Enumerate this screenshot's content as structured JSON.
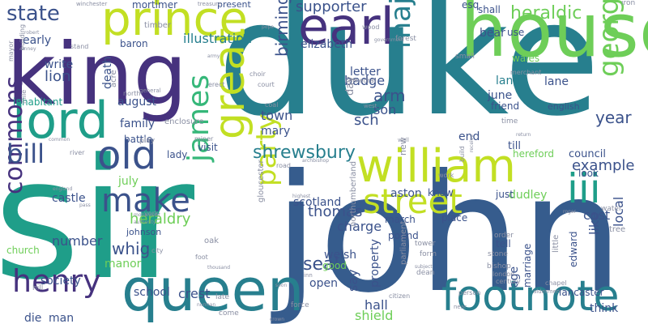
{
  "palette": {
    "purple": "#46327e",
    "indigo": "#3b528b",
    "blue": "#365c8d",
    "teal": "#277f8e",
    "sea": "#1f9e89",
    "green": "#35b779",
    "lime": "#6ece58",
    "yellow": "#c2df23",
    "grey": "#8a8fa3",
    "dark": "#440154"
  },
  "words": [
    {
      "text": "duke",
      "color": "teal"
    },
    {
      "text": "sir",
      "color": "sea"
    },
    {
      "text": "john",
      "color": "blue"
    },
    {
      "text": "king",
      "color": "purple"
    },
    {
      "text": "house",
      "color": "lime"
    },
    {
      "text": "queen",
      "color": "teal"
    },
    {
      "text": "prince",
      "color": "yellow"
    },
    {
      "text": "lord",
      "color": "sea"
    },
    {
      "text": "earl",
      "color": "purple"
    },
    {
      "text": "william",
      "color": "yellow"
    },
    {
      "text": "footnote",
      "color": "teal"
    },
    {
      "text": "great",
      "color": "yellow"
    },
    {
      "text": "street",
      "color": "yellow"
    },
    {
      "text": "iii",
      "color": "sea"
    },
    {
      "text": "old",
      "color": "indigo"
    },
    {
      "text": "make",
      "color": "indigo"
    },
    {
      "text": "henry",
      "color": "purple"
    },
    {
      "text": "commons",
      "color": "purple"
    },
    {
      "text": "james",
      "color": "green"
    },
    {
      "text": "majesty",
      "color": "teal"
    },
    {
      "text": "george",
      "color": "lime"
    },
    {
      "text": "party",
      "color": "yellow"
    },
    {
      "text": "bill",
      "color": "indigo"
    },
    {
      "text": "state",
      "color": "indigo"
    },
    {
      "text": "shrewsbury",
      "color": "teal"
    },
    {
      "text": "heraldic",
      "color": "lime"
    },
    {
      "text": "supporter",
      "color": "indigo"
    },
    {
      "text": "birmingham",
      "color": "indigo"
    },
    {
      "text": "cross",
      "color": "indigo"
    },
    {
      "text": "whig",
      "color": "indigo"
    },
    {
      "text": "heraldry",
      "color": "lime"
    },
    {
      "text": "seal",
      "color": "indigo"
    },
    {
      "text": "thomas",
      "color": "indigo"
    },
    {
      "text": "year",
      "color": "indigo"
    },
    {
      "text": "example",
      "color": "indigo"
    },
    {
      "text": "illustration",
      "color": "teal"
    },
    {
      "text": "lion",
      "color": "indigo"
    },
    {
      "text": "town",
      "color": "indigo"
    },
    {
      "text": "mary",
      "color": "indigo"
    },
    {
      "text": "family",
      "color": "indigo"
    },
    {
      "text": "august",
      "color": "indigo"
    },
    {
      "text": "badge",
      "color": "indigo"
    },
    {
      "text": "arm",
      "color": "indigo"
    },
    {
      "text": "son",
      "color": "indigo"
    },
    {
      "text": "sch",
      "color": "indigo"
    },
    {
      "text": "land",
      "color": "teal"
    },
    {
      "text": "lane",
      "color": "indigo"
    },
    {
      "text": "june",
      "color": "indigo"
    },
    {
      "text": "friend",
      "color": "indigo"
    },
    {
      "text": "english",
      "color": "indigo"
    },
    {
      "text": "council",
      "color": "indigo"
    },
    {
      "text": "hereford",
      "color": "lime"
    },
    {
      "text": "till",
      "color": "indigo"
    },
    {
      "text": "end",
      "color": "indigo"
    },
    {
      "text": "wales",
      "color": "lime"
    },
    {
      "text": "bear",
      "color": "indigo"
    },
    {
      "text": "use",
      "color": "indigo"
    },
    {
      "text": "shall",
      "color": "indigo"
    },
    {
      "text": "esq",
      "color": "indigo"
    },
    {
      "text": "elizabeth",
      "color": "indigo"
    },
    {
      "text": "letter",
      "color": "indigo"
    },
    {
      "text": "charge",
      "color": "indigo"
    },
    {
      "text": "scotland",
      "color": "indigo"
    },
    {
      "text": "aston",
      "color": "indigo"
    },
    {
      "text": "dudley",
      "color": "lime"
    },
    {
      "text": "know",
      "color": "indigo"
    },
    {
      "text": "just",
      "color": "indigo"
    },
    {
      "text": "cost",
      "color": "indigo"
    },
    {
      "text": "look",
      "color": "indigo"
    },
    {
      "text": "like",
      "color": "indigo"
    },
    {
      "text": "local",
      "color": "indigo"
    },
    {
      "text": "july",
      "color": "lime"
    },
    {
      "text": "castle",
      "color": "indigo"
    },
    {
      "text": "number",
      "color": "indigo"
    },
    {
      "text": "johnson",
      "color": "indigo"
    },
    {
      "text": "society",
      "color": "indigo"
    },
    {
      "text": "manor",
      "color": "lime"
    },
    {
      "text": "school",
      "color": "indigo"
    },
    {
      "text": "crest",
      "color": "indigo"
    },
    {
      "text": "die",
      "color": "indigo"
    },
    {
      "text": "man",
      "color": "indigo"
    },
    {
      "text": "hall",
      "color": "indigo"
    },
    {
      "text": "shield",
      "color": "lime"
    },
    {
      "text": "open",
      "color": "indigo"
    },
    {
      "text": "say",
      "color": "indigo"
    },
    {
      "text": "property",
      "color": "indigo"
    },
    {
      "text": "pound",
      "color": "indigo"
    },
    {
      "text": "march",
      "color": "indigo"
    },
    {
      "text": "place",
      "color": "indigo"
    },
    {
      "text": "tell",
      "color": "indigo"
    },
    {
      "text": "lancaster",
      "color": "indigo"
    },
    {
      "text": "think",
      "color": "indigo"
    },
    {
      "text": "edward",
      "color": "indigo"
    },
    {
      "text": "marriage",
      "color": "indigo"
    },
    {
      "text": "age",
      "color": "indigo"
    },
    {
      "text": "welsh",
      "color": "indigo"
    },
    {
      "text": "good",
      "color": "lime"
    },
    {
      "text": "baron",
      "color": "indigo"
    },
    {
      "text": "mortimer",
      "color": "indigo"
    },
    {
      "text": "early",
      "color": "indigo"
    },
    {
      "text": "write",
      "color": "indigo"
    },
    {
      "text": "death",
      "color": "indigo"
    },
    {
      "text": "inhabitant",
      "color": "sea"
    },
    {
      "text": "lady",
      "color": "indigo"
    },
    {
      "text": "visit",
      "color": "indigo"
    },
    {
      "text": "battle",
      "color": "indigo"
    },
    {
      "text": "church",
      "color": "lime"
    },
    {
      "text": "present",
      "color": "indigo"
    },
    {
      "text": "timber",
      "color": "grey"
    },
    {
      "text": "forest",
      "color": "grey"
    },
    {
      "text": "wood",
      "color": "grey"
    },
    {
      "text": "government",
      "color": "grey"
    },
    {
      "text": "small",
      "color": "grey"
    },
    {
      "text": "merchant",
      "color": "grey"
    },
    {
      "text": "iron",
      "color": "grey"
    },
    {
      "text": "treasure",
      "color": "grey"
    },
    {
      "text": "winchester",
      "color": "grey"
    },
    {
      "text": "building",
      "color": "grey"
    },
    {
      "text": "robert",
      "color": "grey"
    },
    {
      "text": "stand",
      "color": "grey"
    },
    {
      "text": "pope",
      "color": "grey"
    },
    {
      "text": "mayor",
      "color": "grey"
    },
    {
      "text": "acre",
      "color": "grey"
    },
    {
      "text": "north",
      "color": "grey"
    },
    {
      "text": "general",
      "color": "grey"
    },
    {
      "text": "army",
      "color": "grey"
    },
    {
      "text": "choir",
      "color": "grey"
    },
    {
      "text": "court",
      "color": "grey"
    },
    {
      "text": "coal",
      "color": "grey"
    },
    {
      "text": "erect",
      "color": "grey"
    },
    {
      "text": "enclosure",
      "color": "grey"
    },
    {
      "text": "cathedral",
      "color": "grey"
    },
    {
      "text": "west",
      "color": "grey"
    },
    {
      "text": "day",
      "color": "grey"
    },
    {
      "text": "wall",
      "color": "grey"
    },
    {
      "text": "new",
      "color": "grey"
    },
    {
      "text": "time",
      "color": "grey"
    },
    {
      "text": "river",
      "color": "grey"
    },
    {
      "text": "play",
      "color": "grey"
    },
    {
      "text": "miner",
      "color": "grey"
    },
    {
      "text": "common",
      "color": "grey"
    },
    {
      "text": "mile",
      "color": "grey"
    },
    {
      "text": "road",
      "color": "grey"
    },
    {
      "text": "archbishop",
      "color": "grey"
    },
    {
      "text": "gloucester",
      "color": "grey"
    },
    {
      "text": "work",
      "color": "grey"
    },
    {
      "text": "build",
      "color": "grey"
    },
    {
      "text": "receive",
      "color": "grey"
    },
    {
      "text": "england",
      "color": "grey"
    },
    {
      "text": "pass",
      "color": "grey"
    },
    {
      "text": "york",
      "color": "grey"
    },
    {
      "text": "authority",
      "color": "grey"
    },
    {
      "text": "oak",
      "color": "grey"
    },
    {
      "text": "city",
      "color": "grey"
    },
    {
      "text": "foot",
      "color": "grey"
    },
    {
      "text": "northumberland",
      "color": "grey"
    },
    {
      "text": "highest",
      "color": "grey"
    },
    {
      "text": "roger",
      "color": "grey"
    },
    {
      "text": "water",
      "color": "grey"
    },
    {
      "text": "tree",
      "color": "grey"
    },
    {
      "text": "order",
      "color": "grey"
    },
    {
      "text": "tower",
      "color": "grey"
    },
    {
      "text": "form",
      "color": "grey"
    },
    {
      "text": "stone",
      "color": "grey"
    },
    {
      "text": "bishop",
      "color": "grey"
    },
    {
      "text": "london",
      "color": "grey"
    },
    {
      "text": "century",
      "color": "grey"
    },
    {
      "text": "little",
      "color": "grey"
    },
    {
      "text": "chapel",
      "color": "grey"
    },
    {
      "text": "subject",
      "color": "grey"
    },
    {
      "text": "dean",
      "color": "grey"
    },
    {
      "text": "parliament",
      "color": "grey"
    },
    {
      "text": "person",
      "color": "grey"
    },
    {
      "text": "citizen",
      "color": "grey"
    },
    {
      "text": "aldermen",
      "color": "grey"
    },
    {
      "text": "inn",
      "color": "grey"
    },
    {
      "text": "late",
      "color": "grey"
    },
    {
      "text": "norman",
      "color": "grey"
    },
    {
      "text": "come",
      "color": "grey"
    },
    {
      "text": "force",
      "color": "grey"
    },
    {
      "text": "crown",
      "color": "grey"
    },
    {
      "text": "hill",
      "color": "grey"
    },
    {
      "text": "soon",
      "color": "grey"
    },
    {
      "text": "near",
      "color": "grey"
    },
    {
      "text": "thousand",
      "color": "grey"
    },
    {
      "text": "monument",
      "color": "grey"
    },
    {
      "text": "return",
      "color": "grey"
    },
    {
      "text": "anney",
      "color": "grey"
    }
  ]
}
